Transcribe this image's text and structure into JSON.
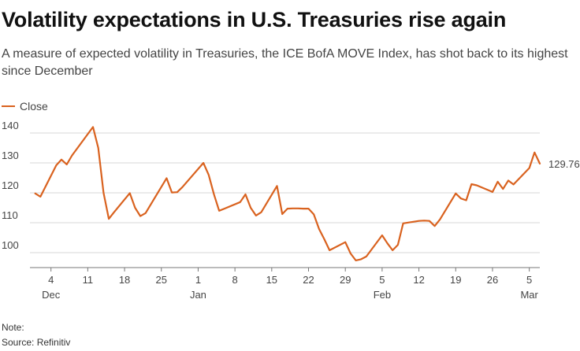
{
  "header": {
    "title": "Volatility expectations in U.S. Treasuries rise again",
    "subtitle": "A measure of expected volatility in Treasuries, the ICE BofA MOVE Index, has shot back to its highest since December"
  },
  "footer": {
    "note": "Note:",
    "source": "Source: Refinitiv"
  },
  "colors": {
    "line": "#d9621f",
    "grid": "#d7d7d7",
    "axis": "#777777"
  },
  "chart_data": {
    "type": "line",
    "title": "Volatility expectations in U.S. Treasuries rise again",
    "xlabel": "",
    "ylabel": "",
    "ylim": [
      95,
      145
    ],
    "xlim": [
      -1,
      96
    ],
    "grid": true,
    "legend_position": "top-left",
    "yticks": [
      100,
      110,
      120,
      130,
      140
    ],
    "xticks": [
      {
        "day": 3,
        "label": "4",
        "month": "Dec"
      },
      {
        "day": 10,
        "label": "11",
        "month": ""
      },
      {
        "day": 17,
        "label": "18",
        "month": ""
      },
      {
        "day": 24,
        "label": "25",
        "month": ""
      },
      {
        "day": 31,
        "label": "1",
        "month": "Jan"
      },
      {
        "day": 38,
        "label": "8",
        "month": ""
      },
      {
        "day": 45,
        "label": "15",
        "month": ""
      },
      {
        "day": 52,
        "label": "22",
        "month": ""
      },
      {
        "day": 59,
        "label": "29",
        "month": ""
      },
      {
        "day": 66,
        "label": "5",
        "month": "Feb"
      },
      {
        "day": 73,
        "label": "12",
        "month": ""
      },
      {
        "day": 80,
        "label": "19",
        "month": ""
      },
      {
        "day": 87,
        "label": "26",
        "month": ""
      },
      {
        "day": 94,
        "label": "5",
        "month": "Mar"
      }
    ],
    "end_label": "129.76",
    "series": [
      {
        "name": "Close",
        "x": [
          0,
          1,
          4,
          5,
          6,
          7,
          11,
          12,
          13,
          14,
          15,
          18,
          19,
          20,
          21,
          25,
          26,
          27,
          28,
          32,
          33,
          34,
          35,
          36,
          39,
          40,
          41,
          42,
          43,
          46,
          47,
          48,
          49,
          50,
          51,
          52,
          53,
          54,
          55,
          56,
          59,
          60,
          61,
          62,
          63,
          66,
          67,
          68,
          69,
          70,
          73,
          74,
          75,
          76,
          77,
          80,
          81,
          82,
          83,
          84,
          87,
          88,
          89,
          90,
          91,
          94,
          95,
          96
        ],
        "values": [
          119.8,
          118.7,
          129.2,
          131.1,
          129.5,
          132.5,
          142.0,
          135.0,
          120.0,
          111.3,
          113.5,
          119.9,
          115.0,
          112.2,
          113.2,
          124.9,
          120.1,
          120.2,
          121.9,
          130.0,
          126.0,
          119.5,
          114.0,
          114.7,
          116.9,
          119.5,
          115.0,
          112.4,
          113.5,
          122.3,
          112.9,
          114.7,
          114.8,
          114.8,
          114.7,
          114.7,
          112.8,
          107.9,
          104.5,
          100.8,
          103.5,
          99.7,
          97.4,
          97.8,
          98.7,
          105.8,
          103.1,
          100.8,
          102.6,
          109.8,
          110.6,
          110.7,
          110.6,
          108.9,
          111.1,
          119.8,
          118.1,
          117.5,
          122.9,
          122.5,
          120.3,
          123.7,
          121.3,
          124.1,
          122.8,
          128.3,
          133.5,
          129.76
        ]
      }
    ]
  }
}
